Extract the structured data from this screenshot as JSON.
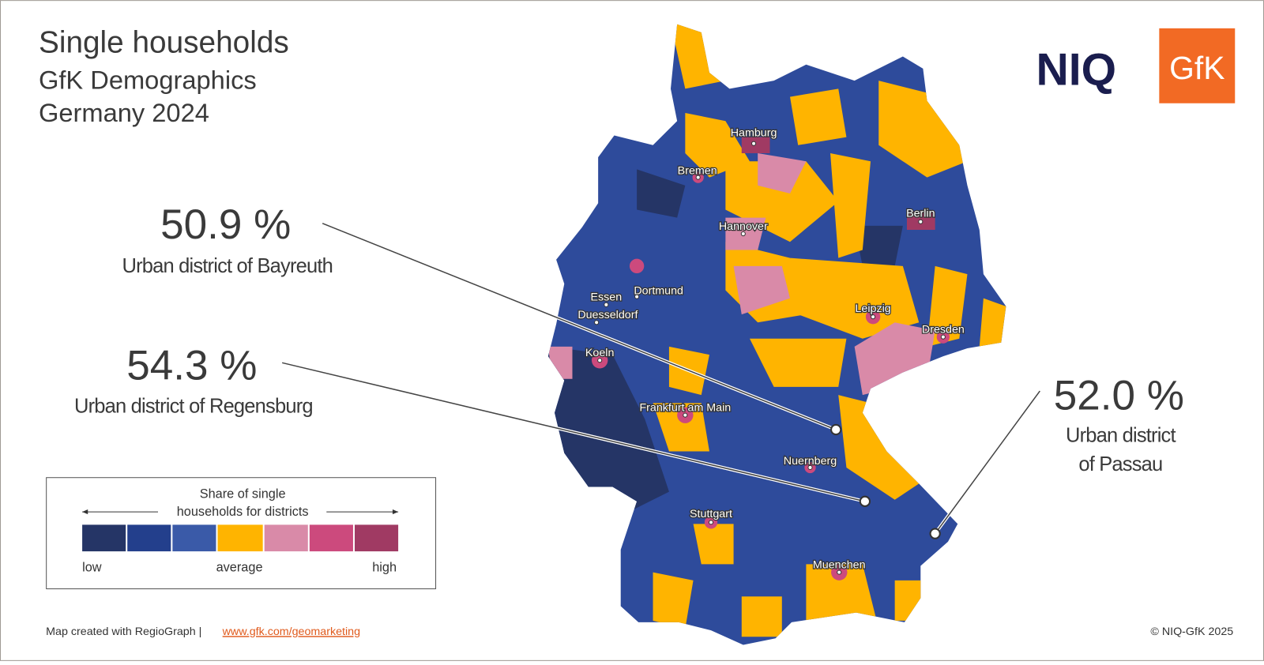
{
  "header": {
    "title": "Single households",
    "subtitle": "GfK Demographics",
    "subtitle2": "Germany 2024"
  },
  "logos": {
    "niq": "NIQ",
    "gfk": "GfK"
  },
  "callouts": [
    {
      "value": "50.9 %",
      "label": "Urban district of Bayreuth"
    },
    {
      "value": "54.3 %",
      "label": "Urban district of Regensburg"
    },
    {
      "value": "52.0 %",
      "label_lines": [
        "Urban district",
        "of Passau"
      ]
    }
  ],
  "cities": [
    "Hamburg",
    "Bremen",
    "Hannover",
    "Berlin",
    "Dortmund",
    "Essen",
    "Duesseldorf",
    "Koeln",
    "Leipzig",
    "Dresden",
    "Frankfurt am Main",
    "Nuernberg",
    "Stuttgart",
    "Muenchen"
  ],
  "legend": {
    "title_lines": [
      "Share of single",
      "households for districts"
    ],
    "low": "low",
    "average": "average",
    "high": "high"
  },
  "footer": {
    "credit": "Map created with RegioGraph |",
    "link": "www.gfk.com/geomarketing",
    "copyright": "© NIQ-GfK 2025"
  }
}
